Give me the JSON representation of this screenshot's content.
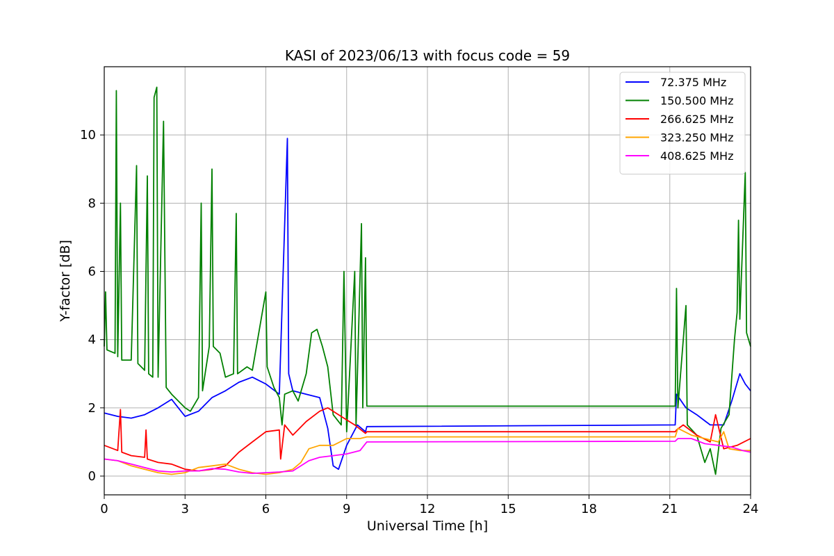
{
  "chart_data": {
    "type": "line",
    "title": "KASI of 2023/06/13 with focus code = 59",
    "xlabel": "Universal Time [h]",
    "ylabel": "Y-factor [dB]",
    "xlim": [
      0,
      24
    ],
    "ylim": [
      -0.55,
      12.0
    ],
    "xticks": [
      0,
      3,
      6,
      9,
      12,
      15,
      18,
      21,
      24
    ],
    "yticks": [
      0,
      2,
      4,
      6,
      8,
      10
    ],
    "grid": true,
    "legend_position": "top-right",
    "series": [
      {
        "name": "  72.375 MHz",
        "color": "#0000ff",
        "points": [
          [
            0,
            1.85
          ],
          [
            0.5,
            1.75
          ],
          [
            1,
            1.7
          ],
          [
            1.5,
            1.8
          ],
          [
            2,
            2.0
          ],
          [
            2.5,
            2.25
          ],
          [
            3,
            1.75
          ],
          [
            3.5,
            1.9
          ],
          [
            4,
            2.3
          ],
          [
            4.5,
            2.5
          ],
          [
            5,
            2.75
          ],
          [
            5.5,
            2.9
          ],
          [
            6,
            2.7
          ],
          [
            6.5,
            2.4
          ],
          [
            6.8,
            9.9
          ],
          [
            6.85,
            3.0
          ],
          [
            7,
            2.5
          ],
          [
            7.5,
            2.4
          ],
          [
            8,
            2.3
          ],
          [
            8.3,
            1.4
          ],
          [
            8.5,
            0.3
          ],
          [
            8.7,
            0.2
          ],
          [
            9,
            0.9
          ],
          [
            9.4,
            1.5
          ],
          [
            9.7,
            1.3
          ],
          [
            9.75,
            1.45
          ],
          [
            21.2,
            1.5
          ],
          [
            21.25,
            2.4
          ],
          [
            21.6,
            2.0
          ],
          [
            22,
            1.8
          ],
          [
            22.5,
            1.5
          ],
          [
            23,
            1.5
          ],
          [
            23.3,
            2.2
          ],
          [
            23.6,
            3.0
          ],
          [
            23.8,
            2.7
          ],
          [
            24,
            2.5
          ]
        ]
      },
      {
        "name": "150.500 MHz",
        "color": "#008000",
        "points": [
          [
            0,
            3.8
          ],
          [
            0.05,
            5.4
          ],
          [
            0.1,
            3.7
          ],
          [
            0.4,
            3.6
          ],
          [
            0.45,
            11.3
          ],
          [
            0.5,
            3.5
          ],
          [
            0.6,
            8.0
          ],
          [
            0.65,
            3.4
          ],
          [
            1.0,
            3.4
          ],
          [
            1.2,
            9.1
          ],
          [
            1.25,
            3.3
          ],
          [
            1.5,
            3.1
          ],
          [
            1.6,
            8.8
          ],
          [
            1.65,
            3.0
          ],
          [
            1.8,
            2.9
          ],
          [
            1.85,
            11.1
          ],
          [
            1.95,
            11.4
          ],
          [
            2.0,
            2.9
          ],
          [
            2.2,
            10.4
          ],
          [
            2.3,
            2.6
          ],
          [
            2.5,
            2.4
          ],
          [
            3.0,
            2.0
          ],
          [
            3.2,
            1.9
          ],
          [
            3.5,
            2.3
          ],
          [
            3.6,
            8.0
          ],
          [
            3.65,
            2.5
          ],
          [
            3.9,
            3.8
          ],
          [
            4.0,
            9.0
          ],
          [
            4.05,
            3.8
          ],
          [
            4.3,
            3.6
          ],
          [
            4.5,
            2.9
          ],
          [
            4.8,
            3.0
          ],
          [
            4.9,
            7.7
          ],
          [
            4.95,
            3.0
          ],
          [
            5.3,
            3.2
          ],
          [
            5.5,
            3.1
          ],
          [
            6.0,
            5.4
          ],
          [
            6.05,
            3.2
          ],
          [
            6.3,
            2.6
          ],
          [
            6.5,
            2.3
          ],
          [
            6.6,
            1.5
          ],
          [
            6.7,
            2.4
          ],
          [
            7.0,
            2.5
          ],
          [
            7.2,
            2.2
          ],
          [
            7.5,
            3.0
          ],
          [
            7.7,
            4.2
          ],
          [
            7.9,
            4.3
          ],
          [
            8.1,
            3.8
          ],
          [
            8.3,
            3.2
          ],
          [
            8.5,
            1.8
          ],
          [
            8.8,
            1.5
          ],
          [
            8.9,
            6.0
          ],
          [
            9.0,
            1.3
          ],
          [
            9.3,
            6.0
          ],
          [
            9.35,
            1.5
          ],
          [
            9.55,
            7.4
          ],
          [
            9.6,
            2.0
          ],
          [
            9.7,
            6.4
          ],
          [
            9.75,
            2.05
          ],
          [
            21.2,
            2.05
          ],
          [
            21.25,
            5.5
          ],
          [
            21.3,
            2.0
          ],
          [
            21.6,
            5.0
          ],
          [
            21.65,
            1.5
          ],
          [
            22.0,
            1.2
          ],
          [
            22.3,
            0.4
          ],
          [
            22.5,
            0.8
          ],
          [
            22.7,
            0.05
          ],
          [
            22.9,
            1.4
          ],
          [
            23.2,
            1.8
          ],
          [
            23.4,
            4.0
          ],
          [
            23.5,
            4.8
          ],
          [
            23.55,
            7.5
          ],
          [
            23.6,
            4.6
          ],
          [
            23.8,
            8.9
          ],
          [
            23.85,
            4.2
          ],
          [
            24,
            3.8
          ]
        ]
      },
      {
        "name": "266.625 MHz",
        "color": "#ff0000",
        "points": [
          [
            0,
            0.9
          ],
          [
            0.5,
            0.75
          ],
          [
            0.6,
            1.95
          ],
          [
            0.65,
            0.7
          ],
          [
            1,
            0.6
          ],
          [
            1.5,
            0.55
          ],
          [
            1.55,
            1.35
          ],
          [
            1.6,
            0.5
          ],
          [
            2,
            0.4
          ],
          [
            2.5,
            0.35
          ],
          [
            3,
            0.2
          ],
          [
            3.5,
            0.15
          ],
          [
            4,
            0.2
          ],
          [
            4.5,
            0.3
          ],
          [
            5,
            0.7
          ],
          [
            5.5,
            1.0
          ],
          [
            6,
            1.3
          ],
          [
            6.5,
            1.35
          ],
          [
            6.55,
            0.5
          ],
          [
            6.7,
            1.5
          ],
          [
            7,
            1.2
          ],
          [
            7.5,
            1.6
          ],
          [
            8,
            1.9
          ],
          [
            8.3,
            2.0
          ],
          [
            8.7,
            1.8
          ],
          [
            9.3,
            1.5
          ],
          [
            9.7,
            1.25
          ],
          [
            9.75,
            1.3
          ],
          [
            21.2,
            1.3
          ],
          [
            21.25,
            1.35
          ],
          [
            21.5,
            1.5
          ],
          [
            22,
            1.2
          ],
          [
            22.5,
            1.0
          ],
          [
            22.7,
            1.8
          ],
          [
            23,
            0.8
          ],
          [
            23.5,
            0.9
          ],
          [
            24,
            1.1
          ]
        ]
      },
      {
        "name": "323.250 MHz",
        "color": "#ffa500",
        "points": [
          [
            0,
            0.5
          ],
          [
            0.5,
            0.45
          ],
          [
            1,
            0.3
          ],
          [
            1.5,
            0.2
          ],
          [
            2,
            0.1
          ],
          [
            2.5,
            0.05
          ],
          [
            3,
            0.1
          ],
          [
            3.5,
            0.25
          ],
          [
            4,
            0.3
          ],
          [
            4.5,
            0.35
          ],
          [
            5,
            0.2
          ],
          [
            5.5,
            0.1
          ],
          [
            6,
            0.05
          ],
          [
            6.5,
            0.1
          ],
          [
            7,
            0.2
          ],
          [
            7.3,
            0.4
          ],
          [
            7.6,
            0.8
          ],
          [
            8,
            0.9
          ],
          [
            8.5,
            0.9
          ],
          [
            9,
            1.1
          ],
          [
            9.5,
            1.1
          ],
          [
            9.75,
            1.15
          ],
          [
            21.2,
            1.15
          ],
          [
            21.3,
            1.4
          ],
          [
            21.8,
            1.2
          ],
          [
            22.3,
            1.1
          ],
          [
            22.8,
            1.0
          ],
          [
            23,
            1.3
          ],
          [
            23.2,
            0.8
          ],
          [
            23.6,
            0.75
          ],
          [
            24,
            0.75
          ]
        ]
      },
      {
        "name": "408.625 MHz",
        "color": "#ff00ff",
        "points": [
          [
            0,
            0.5
          ],
          [
            0.5,
            0.45
          ],
          [
            1,
            0.35
          ],
          [
            1.5,
            0.25
          ],
          [
            2,
            0.15
          ],
          [
            2.5,
            0.12
          ],
          [
            3,
            0.15
          ],
          [
            3.5,
            0.15
          ],
          [
            4,
            0.22
          ],
          [
            4.5,
            0.2
          ],
          [
            5,
            0.12
          ],
          [
            5.5,
            0.08
          ],
          [
            6,
            0.1
          ],
          [
            6.5,
            0.12
          ],
          [
            7,
            0.15
          ],
          [
            7.3,
            0.3
          ],
          [
            7.6,
            0.45
          ],
          [
            8,
            0.55
          ],
          [
            8.5,
            0.6
          ],
          [
            9,
            0.65
          ],
          [
            9.5,
            0.75
          ],
          [
            9.75,
            1.0
          ],
          [
            21.2,
            1.02
          ],
          [
            21.3,
            1.1
          ],
          [
            21.8,
            1.1
          ],
          [
            22.3,
            0.95
          ],
          [
            22.8,
            0.9
          ],
          [
            23.3,
            0.85
          ],
          [
            23.7,
            0.75
          ],
          [
            24,
            0.7
          ]
        ]
      }
    ]
  }
}
